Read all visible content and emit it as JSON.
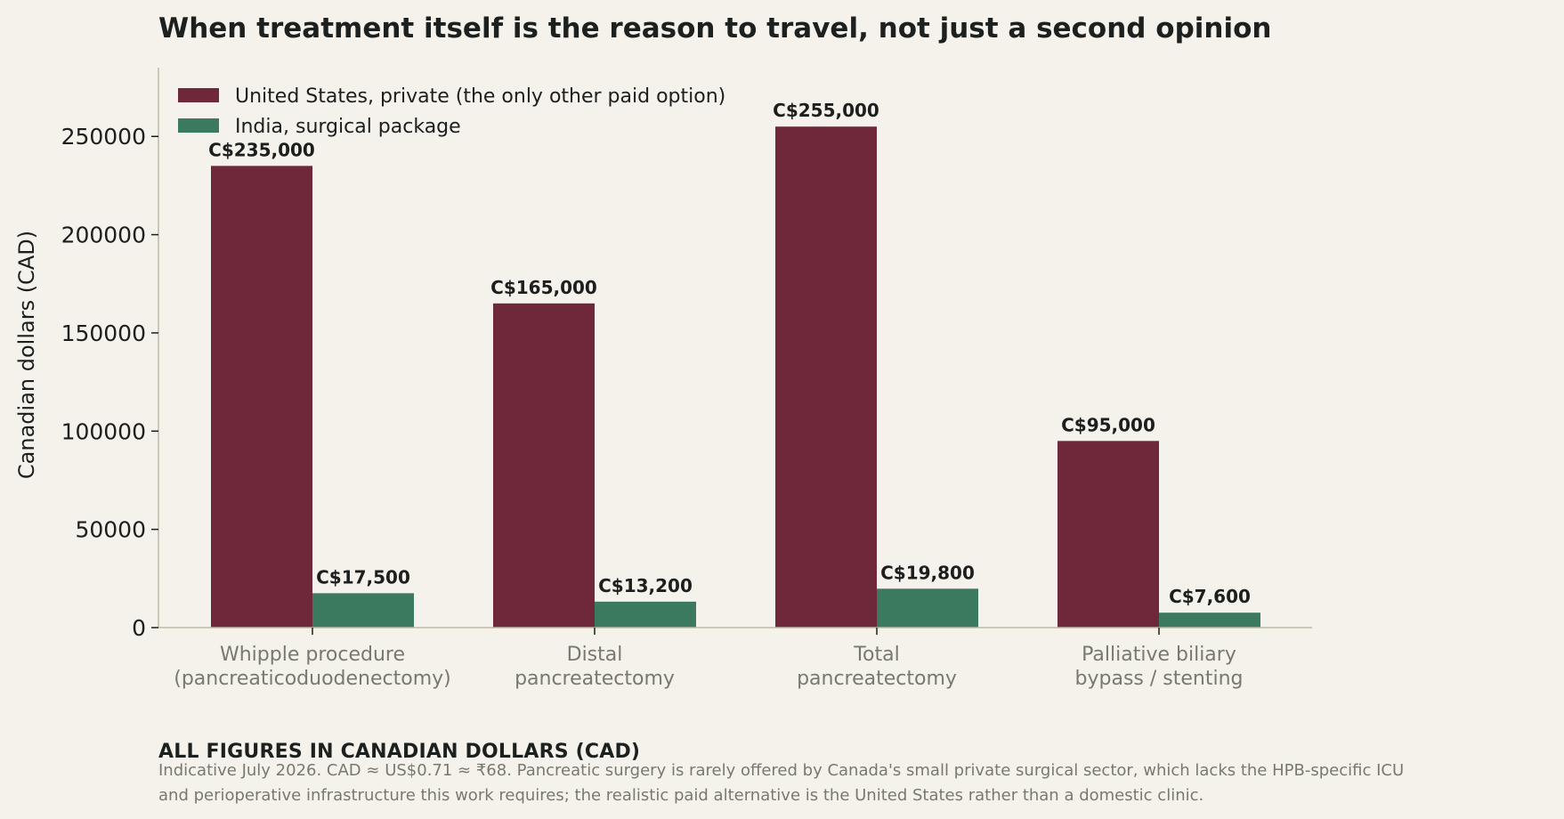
{
  "chart_data": {
    "type": "bar",
    "title": "When treatment itself is the reason to travel, not just a second opinion",
    "xlabel": "",
    "ylabel": "Canadian dollars (CAD)",
    "ylim": [
      0,
      285000
    ],
    "yticks": [
      0,
      50000,
      100000,
      150000,
      200000,
      250000
    ],
    "categories": [
      [
        "Whipple procedure",
        "(pancreaticoduodenectomy)"
      ],
      [
        "Distal",
        "pancreatectomy"
      ],
      [
        "Total",
        "pancreatectomy"
      ],
      [
        "Palliative biliary",
        "bypass / stenting"
      ]
    ],
    "series": [
      {
        "name": "United States, private (the only other paid option)",
        "color": "#6e2839",
        "values": [
          235000,
          165000,
          255000,
          95000
        ],
        "labels": [
          "C$235,000",
          "C$165,000",
          "C$255,000",
          "C$95,000"
        ]
      },
      {
        "name": "India, surgical package",
        "color": "#3c7a5f",
        "values": [
          17500,
          13200,
          19800,
          7600
        ],
        "labels": [
          "C$17,500",
          "C$13,200",
          "C$19,800",
          "C$7,600"
        ]
      }
    ],
    "legend": "top-left",
    "grid": false
  },
  "note": {
    "heading": "ALL FIGURES IN CANADIAN DOLLARS (CAD)",
    "lines": [
      "Indicative July 2026. CAD ≈ US$0.71 ≈ ₹68. Pancreatic surgery is rarely offered by Canada's small private surgical sector, which lacks the HPB-specific ICU",
      "and perioperative infrastructure this work requires; the realistic paid alternative is the United States rather than a domestic clinic."
    ]
  }
}
